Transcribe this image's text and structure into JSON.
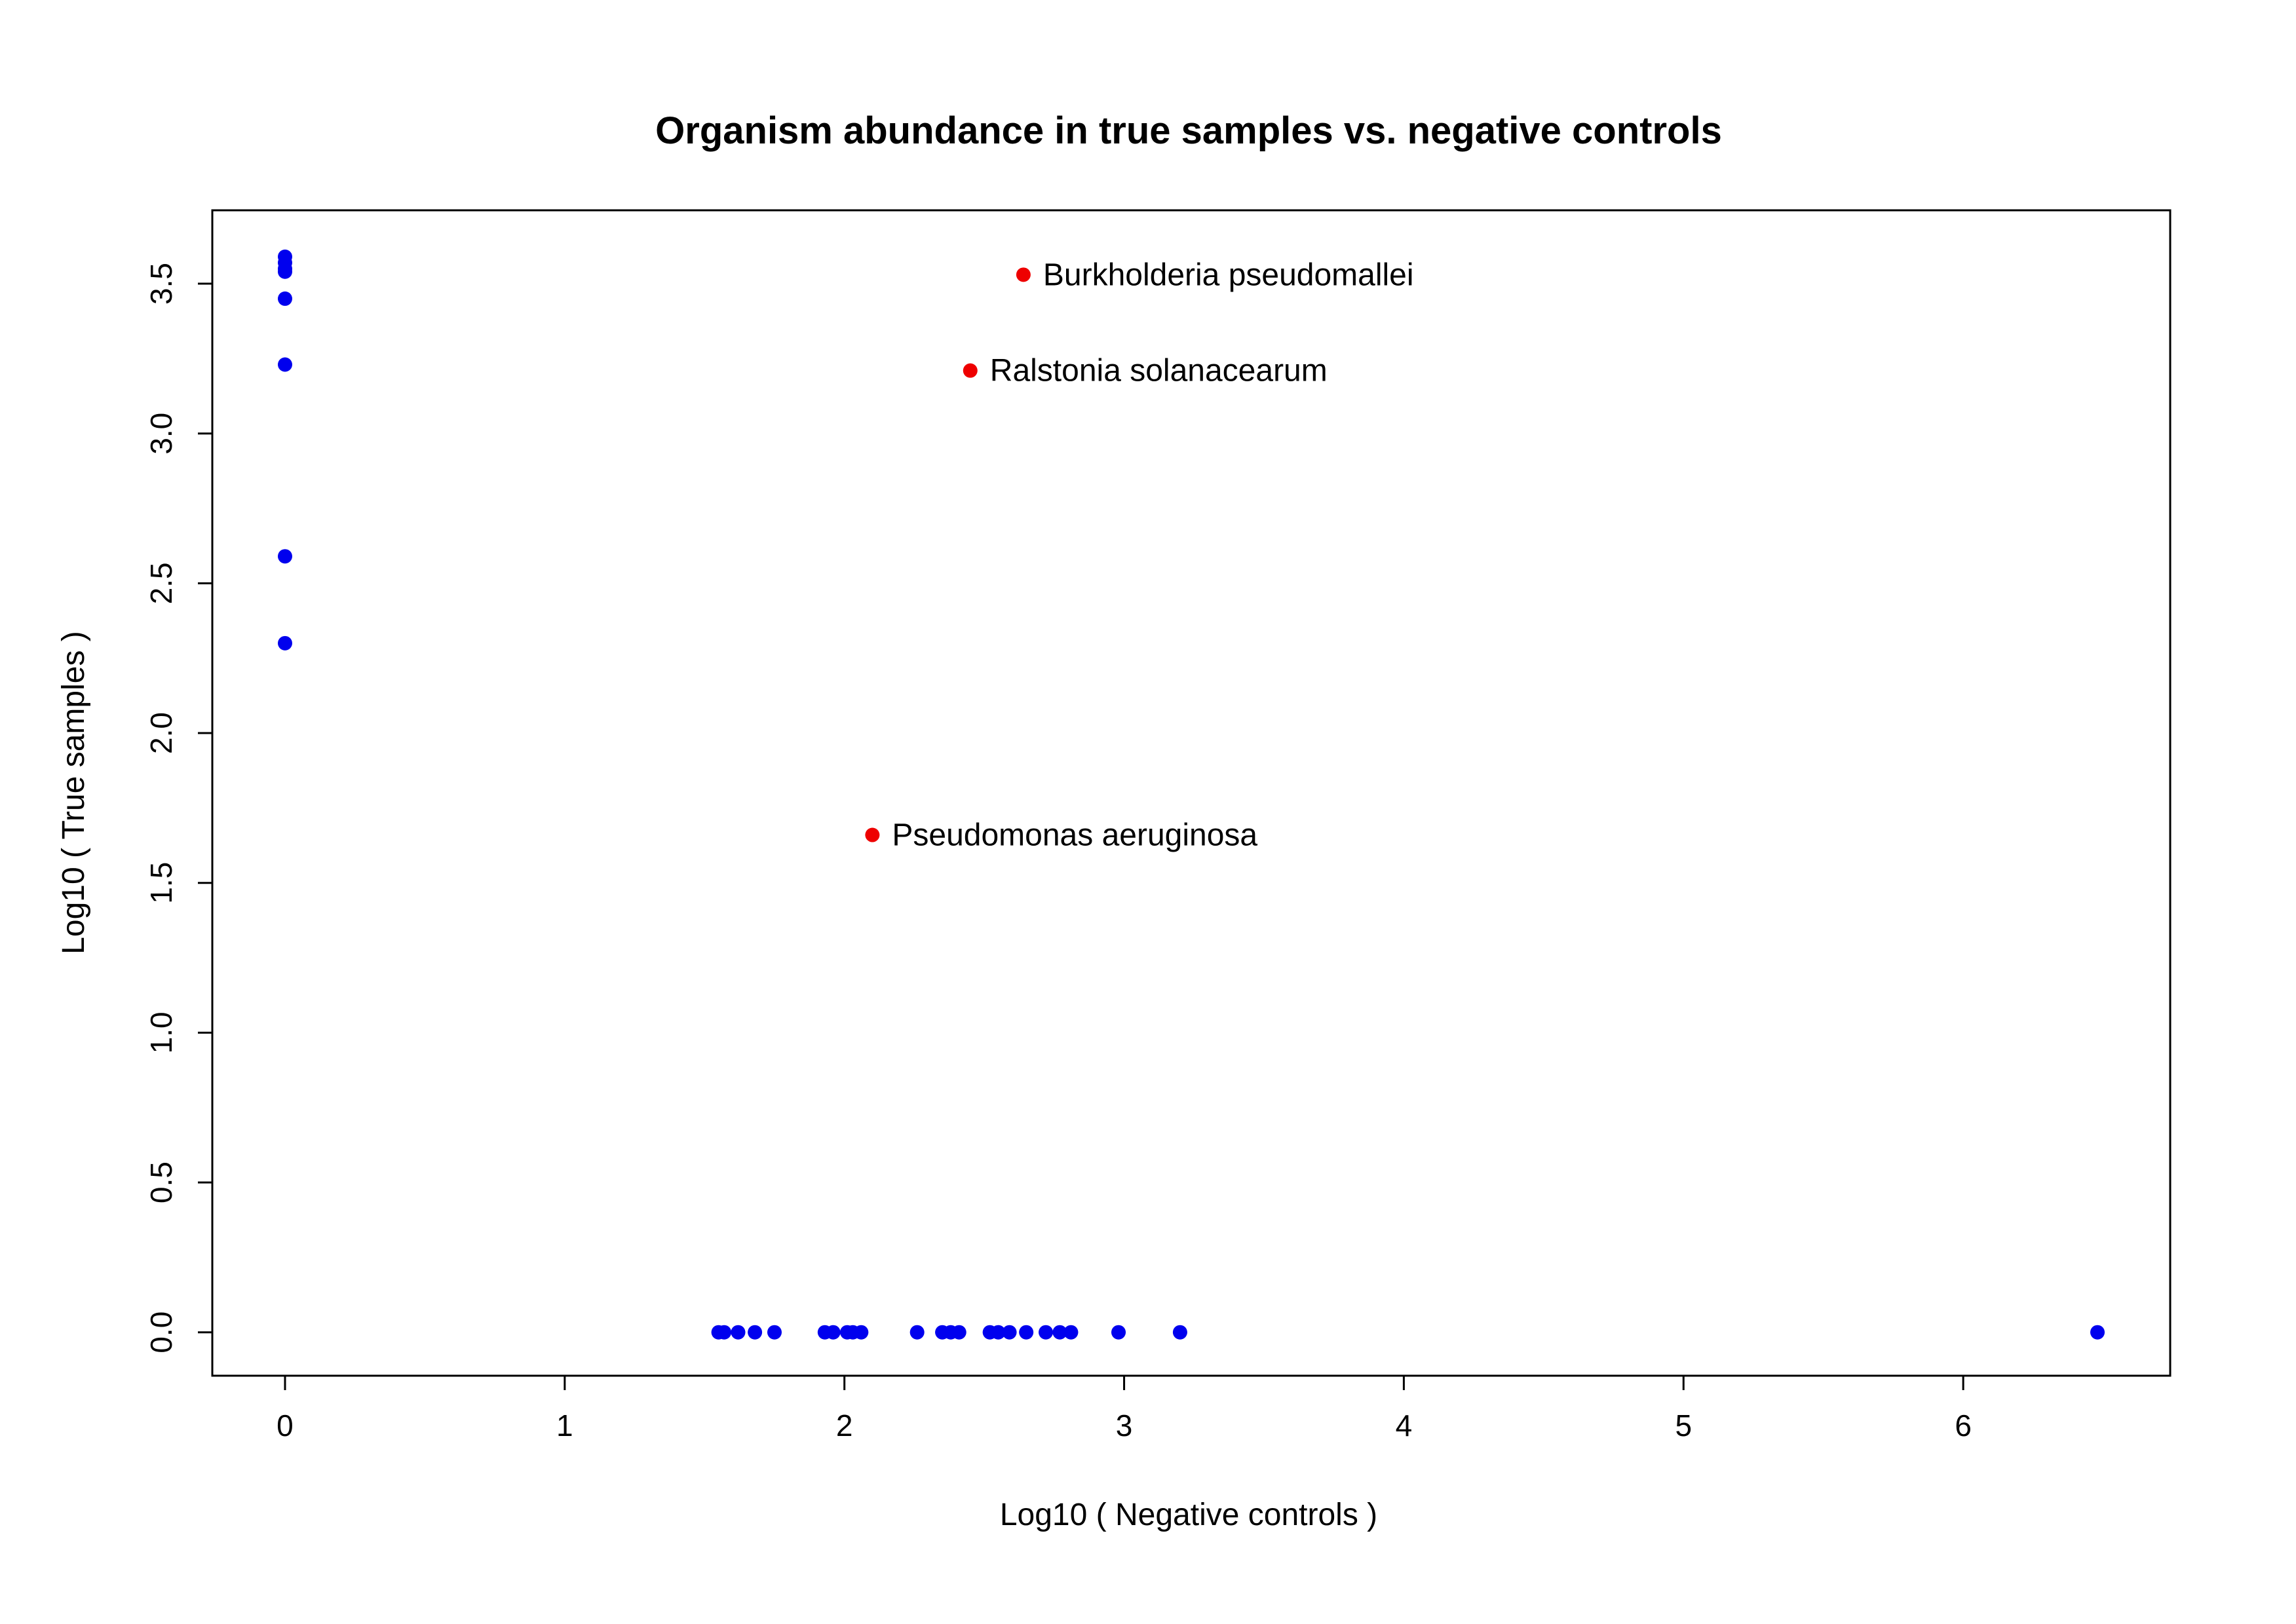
{
  "chart_data": {
    "type": "scatter",
    "title": "Organism abundance in true samples vs. negative controls",
    "xlabel": "Log10 ( Negative controls )",
    "ylabel": "Log10 ( True samples )",
    "xlim": [
      -0.26,
      6.74
    ],
    "ylim": [
      -0.145,
      3.745
    ],
    "x_ticks": [
      0,
      1,
      2,
      3,
      4,
      5,
      6
    ],
    "x_tick_labels": [
      "0",
      "1",
      "2",
      "3",
      "4",
      "5",
      "6"
    ],
    "y_ticks": [
      0.0,
      0.5,
      1.0,
      1.5,
      2.0,
      2.5,
      3.0,
      3.5
    ],
    "y_tick_labels": [
      "0.0",
      "0.5",
      "1.0",
      "1.5",
      "2.0",
      "2.5",
      "3.0",
      "3.5"
    ],
    "grid": false,
    "series": [
      {
        "color": "#0000ee",
        "points": [
          {
            "x": 0,
            "y": 3.59
          },
          {
            "x": 0,
            "y": 3.57
          },
          {
            "x": 0,
            "y": 3.55
          },
          {
            "x": 0,
            "y": 3.54
          },
          {
            "x": 0,
            "y": 3.45
          },
          {
            "x": 0,
            "y": 3.23
          },
          {
            "x": 0,
            "y": 2.59
          },
          {
            "x": 0,
            "y": 2.3
          },
          {
            "x": 1.55,
            "y": 0
          },
          {
            "x": 1.57,
            "y": 0
          },
          {
            "x": 1.62,
            "y": 0
          },
          {
            "x": 1.68,
            "y": 0
          },
          {
            "x": 1.75,
            "y": 0
          },
          {
            "x": 1.93,
            "y": 0
          },
          {
            "x": 1.96,
            "y": 0
          },
          {
            "x": 2.01,
            "y": 0
          },
          {
            "x": 2.03,
            "y": 0
          },
          {
            "x": 2.06,
            "y": 0
          },
          {
            "x": 2.26,
            "y": 0
          },
          {
            "x": 2.35,
            "y": 0
          },
          {
            "x": 2.38,
            "y": 0
          },
          {
            "x": 2.41,
            "y": 0
          },
          {
            "x": 2.52,
            "y": 0
          },
          {
            "x": 2.55,
            "y": 0
          },
          {
            "x": 2.59,
            "y": 0
          },
          {
            "x": 2.65,
            "y": 0
          },
          {
            "x": 2.72,
            "y": 0
          },
          {
            "x": 2.77,
            "y": 0
          },
          {
            "x": 2.81,
            "y": 0
          },
          {
            "x": 2.98,
            "y": 0
          },
          {
            "x": 3.2,
            "y": 0
          },
          {
            "x": 6.48,
            "y": 0
          }
        ]
      },
      {
        "color": "#ee0000",
        "points": [
          {
            "x": 2.64,
            "y": 3.53,
            "label": "Burkholderia pseudomallei"
          },
          {
            "x": 2.45,
            "y": 3.21,
            "label": "Ralstonia solanacearum"
          },
          {
            "x": 2.1,
            "y": 1.66,
            "label": "Pseudomonas aeruginosa"
          }
        ]
      }
    ]
  }
}
